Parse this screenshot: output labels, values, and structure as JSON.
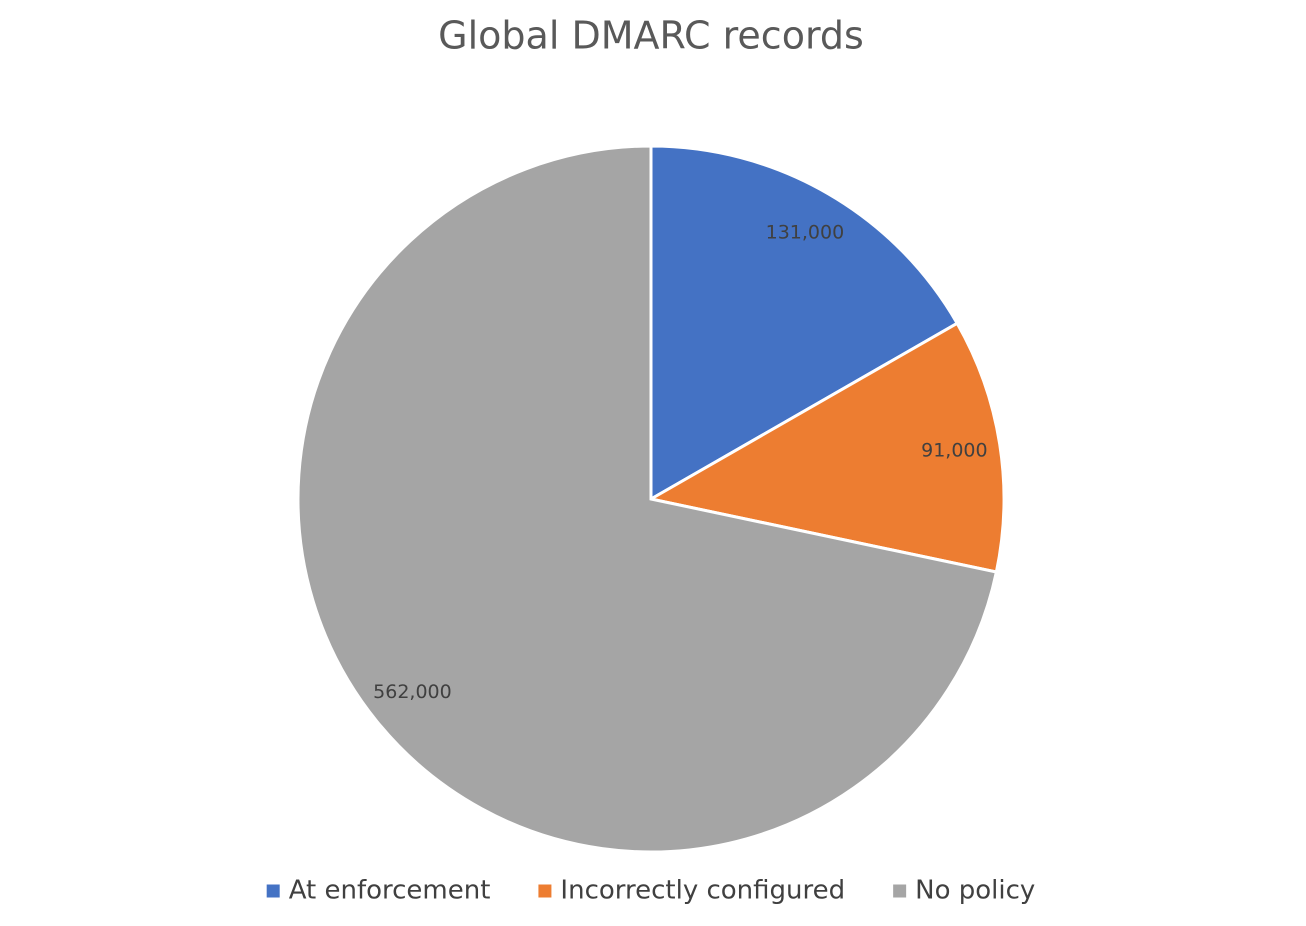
{
  "chart_data": {
    "type": "pie",
    "title": "Global DMARC records",
    "categories": [
      "At enforcement",
      "Incorrectly configured",
      "No policy"
    ],
    "values": [
      131000,
      91000,
      562000
    ],
    "value_labels": [
      "131,000",
      "91,000",
      "562,000"
    ],
    "colors": [
      "#4472c4",
      "#ed7d31",
      "#a5a5a5"
    ],
    "legend": "bottom"
  }
}
